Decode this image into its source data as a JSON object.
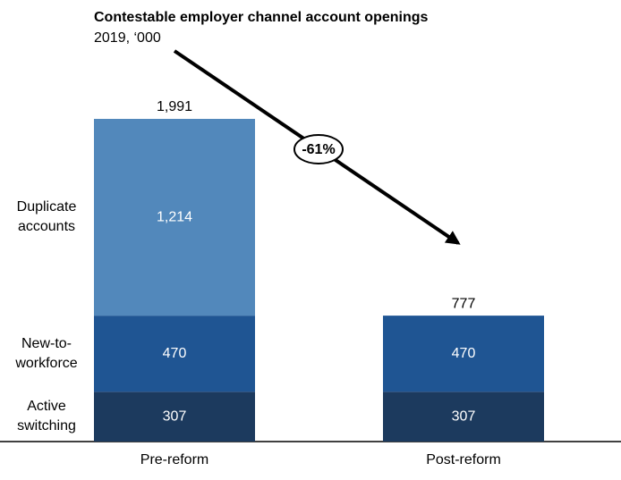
{
  "chart_data": {
    "type": "stacked_bar",
    "title": "Contestable employer channel account openings",
    "subtitle": "2019, ‘000",
    "categories": [
      "Pre-reform",
      "Post-reform"
    ],
    "series": [
      {
        "name": "Active switching",
        "color": "#1c3a5e",
        "values": [
          307,
          307
        ]
      },
      {
        "name": "New-to-workforce",
        "color": "#1f5593",
        "values": [
          470,
          470
        ]
      },
      {
        "name": "Duplicate accounts",
        "color": "#5288bb",
        "values": [
          1214,
          null
        ],
        "value_labels": [
          "1,214",
          null
        ]
      }
    ],
    "totals": [
      {
        "value": 1991,
        "label": "1,991"
      },
      777
    ],
    "annotation": "-61%"
  }
}
